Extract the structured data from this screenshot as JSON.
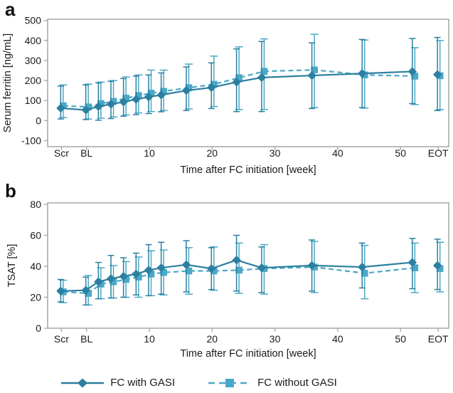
{
  "figure": {
    "panel_letters": [
      "a",
      "b"
    ]
  },
  "colors": {
    "series_with_gasi": "#2C7F9F",
    "series_without_gasi": "#4AA8C7",
    "axis": "#ABABAB",
    "text": "#1A1A1A"
  },
  "legend": {
    "items": [
      {
        "label": "FC with GASI",
        "marker": "diamond",
        "line": "solid"
      },
      {
        "label": "FC without GASI",
        "marker": "square",
        "line": "dashed"
      }
    ]
  },
  "chart_data": [
    {
      "panel": "a",
      "type": "line",
      "ylabel": "Serum ferritin [ng/mL]",
      "xlabel": "Time after FC initiation [week]",
      "ylim": [
        -100,
        500
      ],
      "yticks": [
        -100,
        0,
        100,
        200,
        300,
        400,
        500
      ],
      "xticks": [
        {
          "week": -4,
          "label": "Scr"
        },
        {
          "week": 0,
          "label": "BL"
        },
        {
          "week": 10,
          "label": "10"
        },
        {
          "week": 20,
          "label": "20"
        },
        {
          "week": 30,
          "label": "30"
        },
        {
          "week": 40,
          "label": "40"
        },
        {
          "week": 50,
          "label": "50"
        },
        {
          "week": 56,
          "label": "EOT"
        }
      ],
      "weeks": [
        -4,
        0,
        2,
        4,
        6,
        8,
        10,
        12,
        16,
        20,
        24,
        28,
        36,
        44,
        52,
        56
      ],
      "point_labels": [
        "Scr",
        "BL",
        "2",
        "4",
        "6",
        "8",
        "10",
        "12",
        "16",
        "20",
        "24",
        "28",
        "36",
        "44",
        "52",
        "EOT"
      ],
      "connect_last_point": false,
      "grid": false,
      "series": [
        {
          "name": "FC with GASI",
          "marker": "diamond",
          "line": "solid",
          "values": [
            62,
            53,
            70,
            82,
            93,
            106,
            118,
            128,
            150,
            165,
            192,
            215,
            225,
            235,
            245,
            230
          ],
          "err_lo": [
            8,
            5,
            2,
            10,
            22,
            30,
            35,
            44,
            50,
            60,
            45,
            45,
            60,
            65,
            85,
            50
          ],
          "err_hi": [
            172,
            178,
            188,
            196,
            210,
            222,
            228,
            238,
            268,
            288,
            358,
            395,
            388,
            405,
            410,
            415
          ]
        },
        {
          "name": "FC without GASI",
          "marker": "square",
          "line": "dashed",
          "values": [
            74,
            68,
            85,
            96,
            112,
            125,
            137,
            146,
            164,
            181,
            214,
            246,
            253,
            228,
            222,
            224
          ],
          "err_lo": [
            15,
            8,
            12,
            18,
            28,
            38,
            45,
            50,
            58,
            70,
            55,
            55,
            65,
            62,
            80,
            55
          ],
          "err_hi": [
            178,
            182,
            192,
            200,
            218,
            228,
            252,
            252,
            282,
            322,
            368,
            408,
            431,
            402,
            364,
            400
          ]
        }
      ]
    },
    {
      "panel": "b",
      "type": "line",
      "ylabel": "TSAT [%]",
      "xlabel": "Time after FC initiation [week]",
      "ylim": [
        0,
        80
      ],
      "yticks": [
        0,
        20,
        40,
        60,
        80
      ],
      "xticks": [
        {
          "week": -4,
          "label": "Scr"
        },
        {
          "week": 0,
          "label": "BL"
        },
        {
          "week": 10,
          "label": "10"
        },
        {
          "week": 20,
          "label": "20"
        },
        {
          "week": 30,
          "label": "30"
        },
        {
          "week": 40,
          "label": "40"
        },
        {
          "week": 50,
          "label": "50"
        },
        {
          "week": 56,
          "label": "EOT"
        }
      ],
      "weeks": [
        -4,
        0,
        2,
        4,
        6,
        8,
        10,
        12,
        16,
        20,
        24,
        28,
        36,
        44,
        52,
        56
      ],
      "point_labels": [
        "Scr",
        "BL",
        "2",
        "4",
        "6",
        "8",
        "10",
        "12",
        "16",
        "20",
        "24",
        "28",
        "36",
        "44",
        "52",
        "EOT"
      ],
      "connect_last_point": false,
      "grid": false,
      "series": [
        {
          "name": "FC with GASI",
          "marker": "diamond",
          "line": "solid",
          "values": [
            24,
            24.5,
            30,
            32,
            33.5,
            35,
            37.5,
            39,
            41,
            38.5,
            44,
            39,
            40.5,
            39.5,
            42.5,
            40.5
          ],
          "err_lo": [
            17,
            15,
            19,
            19.5,
            20,
            21.5,
            21,
            22,
            23.5,
            25,
            24,
            23,
            24,
            26,
            25.5,
            25
          ],
          "err_hi": [
            31.5,
            33,
            42.5,
            47,
            45.5,
            48.5,
            54,
            55.5,
            56.5,
            52,
            60,
            52.5,
            57,
            55,
            58,
            57.5
          ]
        },
        {
          "name": "FC without GASI",
          "marker": "square",
          "line": "dashed",
          "values": [
            23.5,
            22.5,
            28.5,
            30,
            31.5,
            33,
            35,
            36,
            37,
            37,
            37.5,
            38.5,
            39.5,
            35.5,
            39,
            38.5
          ],
          "err_lo": [
            16.5,
            15,
            19,
            19.5,
            20,
            20,
            21,
            21.5,
            22,
            24.5,
            22.5,
            22,
            23,
            19,
            23,
            23.5
          ],
          "err_hi": [
            31,
            34,
            39,
            40.5,
            43,
            46,
            50,
            50.5,
            52,
            52.5,
            55,
            54,
            56,
            53.5,
            55,
            55.5
          ]
        }
      ]
    }
  ]
}
